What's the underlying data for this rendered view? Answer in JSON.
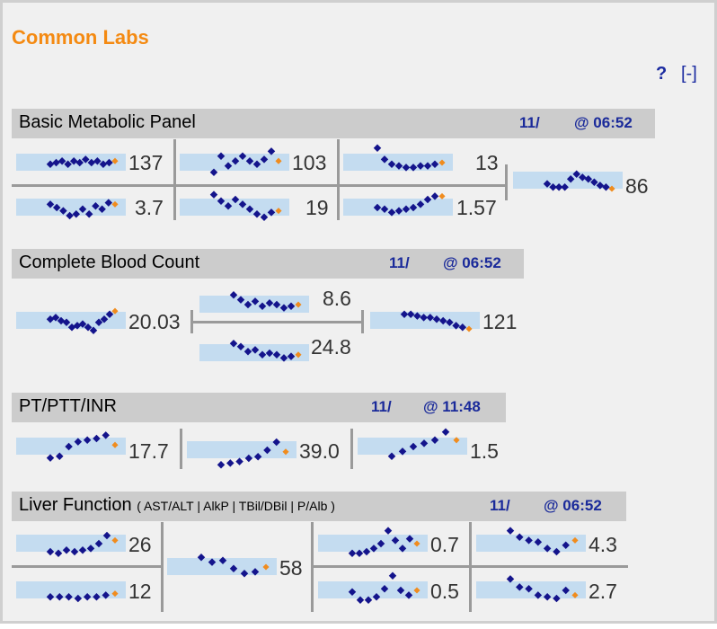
{
  "title": "Common Labs",
  "help_label": "?",
  "collapse_label": "[-]",
  "colors": {
    "accent": "#f48a12",
    "band": "#c4dcf0",
    "point": "#14148c",
    "latest": "#f08c1e",
    "header_bg": "#cccccc"
  },
  "sections": {
    "bmp": {
      "name": "Basic Metabolic Panel",
      "date": "11/",
      "time": "@ 06:52",
      "values": {
        "na": "137",
        "cl": "103",
        "bun": "13",
        "k": "3.7",
        "co2": "19",
        "cr": "1.57",
        "glu": "86"
      }
    },
    "cbc": {
      "name": "Complete Blood Count",
      "date": "11/",
      "time": "@ 06:52",
      "values": {
        "wbc": "20.03",
        "hgb": "8.6",
        "hct": "24.8",
        "plt": "121"
      }
    },
    "coag": {
      "name": "PT/PTT/INR",
      "date": "11/",
      "time": "@ 11:48",
      "values": {
        "pt": "17.7",
        "ptt": "39.0",
        "inr": "1.5"
      }
    },
    "lft": {
      "name": "Liver Function",
      "subtitle": "( AST/ALT | AlkP | TBil/DBil | P/Alb )",
      "date": "11/",
      "time": "@ 06:52",
      "values": {
        "ast": "26",
        "alt": "12",
        "alkp": "58",
        "tbil": "0.7",
        "dbil": "0.5",
        "prot": "4.3",
        "alb": "2.7"
      }
    }
  },
  "sparklines": {
    "bmp_na": [
      0.45,
      0.5,
      0.55,
      0.45,
      0.55,
      0.5,
      0.6,
      0.5,
      0.55,
      0.45,
      0.5,
      0.55
    ],
    "bmp_cl": [
      0.2,
      0.7,
      0.4,
      0.55,
      0.7,
      0.55,
      0.45,
      0.6,
      0.85,
      0.55
    ],
    "bmp_bun": [
      0.95,
      0.6,
      0.45,
      0.4,
      0.35,
      0.35,
      0.4,
      0.4,
      0.45,
      0.5
    ],
    "bmp_k": [
      0.6,
      0.5,
      0.4,
      0.25,
      0.3,
      0.45,
      0.3,
      0.55,
      0.45,
      0.65,
      0.6
    ],
    "bmp_co2": [
      0.9,
      0.7,
      0.55,
      0.75,
      0.6,
      0.45,
      0.3,
      0.2,
      0.35,
      0.4
    ],
    "bmp_cr": [
      0.5,
      0.45,
      0.35,
      0.4,
      0.45,
      0.5,
      0.6,
      0.75,
      0.85,
      0.85
    ],
    "bmp_glu": [
      0.4,
      0.3,
      0.3,
      0.3,
      0.55,
      0.7,
      0.6,
      0.55,
      0.45,
      0.35,
      0.3,
      0.25
    ],
    "cbc_wbc": [
      0.55,
      0.6,
      0.5,
      0.45,
      0.3,
      0.35,
      0.4,
      0.3,
      0.2,
      0.45,
      0.55,
      0.7,
      0.8
    ],
    "cbc_hgb": [
      0.8,
      0.65,
      0.5,
      0.6,
      0.45,
      0.55,
      0.5,
      0.4,
      0.45,
      0.5
    ],
    "cbc_hct": [
      0.8,
      0.7,
      0.55,
      0.6,
      0.45,
      0.5,
      0.45,
      0.35,
      0.4,
      0.45
    ],
    "cbc_plt": [
      0.7,
      0.7,
      0.65,
      0.6,
      0.6,
      0.55,
      0.5,
      0.45,
      0.35,
      0.3,
      0.25
    ],
    "coag_pt": [
      0.15,
      0.2,
      0.5,
      0.65,
      0.7,
      0.75,
      0.85,
      0.55
    ],
    "coag_ptt": [
      0.05,
      0.1,
      0.15,
      0.25,
      0.3,
      0.5,
      0.75,
      0.45
    ],
    "coag_inr": [
      0.2,
      0.35,
      0.5,
      0.6,
      0.7,
      0.95,
      0.7
    ],
    "lft_ast": [
      0.25,
      0.2,
      0.3,
      0.25,
      0.3,
      0.35,
      0.5,
      0.75,
      0.6
    ],
    "lft_alt": [
      0.3,
      0.3,
      0.3,
      0.25,
      0.3,
      0.3,
      0.35,
      0.4
    ],
    "lft_alkp": [
      0.8,
      0.65,
      0.7,
      0.45,
      0.3,
      0.35,
      0.5
    ],
    "lft_tbil": [
      0.2,
      0.2,
      0.25,
      0.35,
      0.5,
      0.9,
      0.6,
      0.35,
      0.65,
      0.5
    ],
    "lft_dbil": [
      0.45,
      0.2,
      0.2,
      0.3,
      0.55,
      0.95,
      0.5,
      0.35,
      0.5
    ],
    "lft_prot": [
      0.9,
      0.7,
      0.6,
      0.55,
      0.35,
      0.25,
      0.45,
      0.6
    ],
    "lft_alb": [
      0.85,
      0.6,
      0.55,
      0.35,
      0.3,
      0.25,
      0.5,
      0.35
    ]
  }
}
